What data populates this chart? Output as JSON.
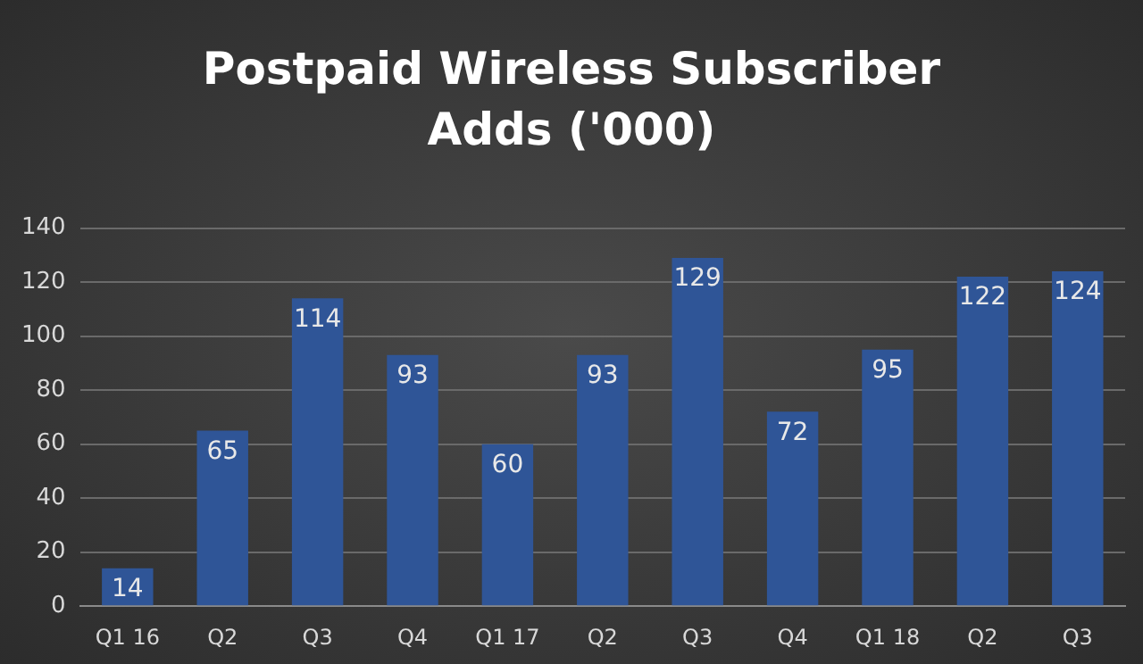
{
  "chart_data": {
    "type": "bar",
    "title": "Postpaid Wireless Subscriber Adds ('000)",
    "categories": [
      "Q1 16",
      "Q2",
      "Q3",
      "Q4",
      "Q1 17",
      "Q2",
      "Q3",
      "Q4",
      "Q1 18",
      "Q2",
      "Q3"
    ],
    "values": [
      14,
      65,
      114,
      93,
      60,
      93,
      129,
      72,
      95,
      122,
      124
    ],
    "color": "#2f5597",
    "ylim": [
      0,
      140
    ],
    "yticks": [
      0,
      20,
      40,
      60,
      80,
      100,
      120,
      140
    ],
    "grid": "y",
    "data_labels": true,
    "legend": false
  }
}
